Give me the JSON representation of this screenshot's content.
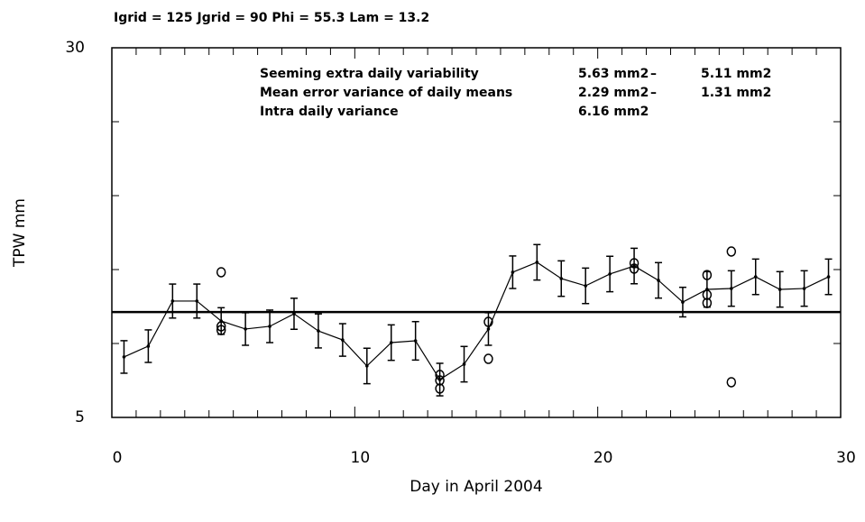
{
  "chart_data": {
    "type": "line",
    "header": "Igrid = 125   Jgrid =  90     Phi = 55.3   Lam = 13.2",
    "xlabel": "Day in April 2004",
    "ylabel": "TPW   mm",
    "xlim": [
      0,
      30
    ],
    "ylim": [
      5,
      30
    ],
    "xticks": [
      0,
      10,
      20,
      30
    ],
    "xminorticks": [
      1,
      2,
      3,
      4,
      5,
      6,
      7,
      8,
      9,
      11,
      12,
      13,
      14,
      15,
      16,
      17,
      18,
      19,
      21,
      22,
      23,
      24,
      25,
      26,
      27,
      28,
      29
    ],
    "yticks": [
      5,
      30
    ],
    "yminorticks": [
      10,
      15,
      20,
      25
    ],
    "color": "#000000",
    "hline": 12.13,
    "x": [
      0.5,
      1.5,
      2.5,
      3.5,
      4.5,
      5.5,
      6.5,
      7.5,
      8.5,
      9.5,
      10.5,
      11.5,
      12.5,
      13.5,
      14.5,
      15.5,
      16.5,
      17.5,
      18.5,
      19.5,
      20.5,
      21.5,
      22.5,
      23.5,
      24.5,
      25.5,
      26.5,
      27.5,
      28.5,
      29.5
    ],
    "series": [
      {
        "values": [
          9.09,
          9.82,
          12.87,
          12.87,
          11.52,
          10.98,
          11.16,
          12.01,
          10.85,
          10.24,
          8.48,
          10.06,
          10.18,
          7.56,
          8.6,
          10.98,
          14.82,
          15.49,
          14.39,
          13.9,
          14.7,
          15.24,
          14.27,
          12.8,
          13.66,
          13.72,
          14.51,
          13.66,
          13.72,
          14.51
        ],
        "errors": [
          1.1,
          1.1,
          1.15,
          1.15,
          0.9,
          1.1,
          1.1,
          1.05,
          1.15,
          1.1,
          1.2,
          1.2,
          1.3,
          1.1,
          1.2,
          1.1,
          1.1,
          1.2,
          1.2,
          1.2,
          1.2,
          1.2,
          1.2,
          1.0,
          1.2,
          1.2,
          1.2,
          1.2,
          1.2,
          1.2
        ]
      }
    ],
    "scatter": {
      "x": [
        4.5,
        4.5,
        4.5,
        13.5,
        13.5,
        13.5,
        15.5,
        15.5,
        21.5,
        21.5,
        24.5,
        24.5,
        24.5,
        25.5,
        25.5
      ],
      "values": [
        14.82,
        11.16,
        10.91,
        7.87,
        7.5,
        6.95,
        11.46,
        8.96,
        15.43,
        15.06,
        14.63,
        13.29,
        12.74,
        16.22,
        7.38
      ]
    },
    "annotations": [
      [
        "Seeming extra daily variability",
        "5.63 mm2",
        "–",
        "5.11 mm2"
      ],
      [
        "Mean error variance of daily means",
        "2.29 mm2",
        "–",
        "1.31 mm2"
      ],
      [
        "Intra daily variance",
        "6.16 mm2"
      ]
    ]
  }
}
